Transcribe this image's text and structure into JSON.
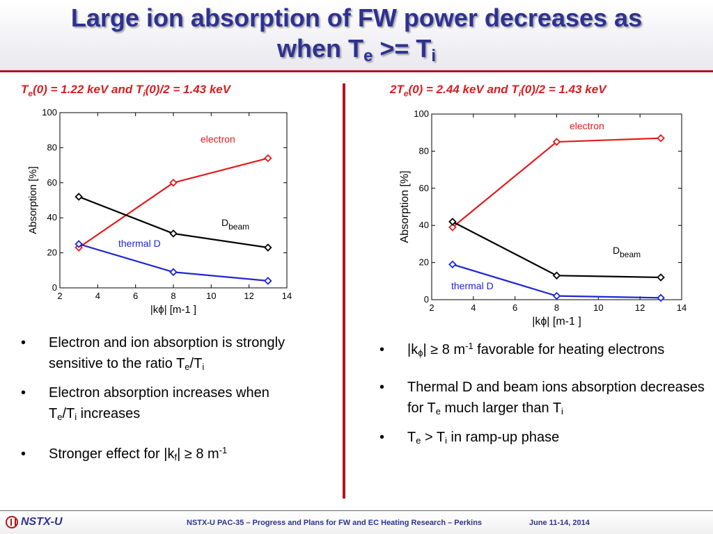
{
  "slide": {
    "title_line1": "Large ion absorption of FW power decreases as",
    "title_line2_a": "when T",
    "title_line2_sub_e": "e",
    "title_line2_b": " >= T",
    "title_line2_sub_i": "i"
  },
  "left": {
    "subtitle": {
      "t1": "T",
      "s1": "e",
      "t2": "(0) = 1.22 keV and T",
      "s2": "i",
      "t3": "(0)/2 = 1.43 keV"
    },
    "bullets": [
      {
        "dot": "•",
        "a": " Electron and ion absorption is strongly sensitive to the ratio T",
        "sub1": "e",
        "b": "/T",
        "sub2": "i"
      },
      {
        "dot": "•",
        "a": "Electron absorption increases when T",
        "sub1": "e",
        "b": "/T",
        "sub2": "i",
        "c": " increases"
      },
      {
        "dot": "•",
        "a": "Stronger effect for |k",
        "sub1": "f",
        "b": "| ≥ 8 m",
        "sup1": "-1"
      }
    ]
  },
  "right": {
    "subtitle": {
      "t1": "2T",
      "s1": "e",
      "t2": "(0) = 2.44 keV and T",
      "s2": "i",
      "t3": "(0)/2 = 1.43 keV"
    },
    "bullets": [
      {
        "dot": "•",
        "a": "|k",
        "sub1": "ϕ",
        "b": "| ≥ 8 m",
        "sup1": "-1",
        "c": " favorable for heating electrons"
      },
      {
        "dot": "•",
        "a": "Thermal D and beam ions absorption decreases for T",
        "sub1": "e",
        "b": " much larger than T",
        "sub2": "i"
      },
      {
        "dot": "•",
        "a": "T",
        "sub1": "e",
        "b": " > T",
        "sub2": "i",
        "c": " in ramp-up phase"
      }
    ]
  },
  "chart_data": [
    {
      "type": "line",
      "xlabel": "|kϕ| [m-1 ]",
      "ylabel": "Absorption [%]",
      "xlim": [
        2,
        14
      ],
      "ylim": [
        0,
        100
      ],
      "xticks": [
        2,
        4,
        6,
        8,
        10,
        12,
        14
      ],
      "yticks": [
        0,
        20,
        40,
        60,
        80,
        100
      ],
      "grid": false,
      "legend": "inline labels",
      "series": [
        {
          "name": "electron",
          "color": "#e31a1c",
          "x": [
            3,
            8,
            13
          ],
          "y": [
            23,
            60,
            74
          ]
        },
        {
          "name": "D_beam",
          "color": "#000000",
          "x": [
            3,
            8,
            13
          ],
          "y": [
            52,
            31,
            23
          ]
        },
        {
          "name": "thermal D",
          "color": "#1f24d4",
          "x": [
            3,
            8,
            13
          ],
          "y": [
            25,
            9,
            4
          ]
        }
      ]
    },
    {
      "type": "line",
      "xlabel": "|kϕ| [m-1 ]",
      "ylabel": "Absorption [%]",
      "xlim": [
        2,
        14
      ],
      "ylim": [
        0,
        100
      ],
      "xticks": [
        2,
        4,
        6,
        8,
        10,
        12,
        14
      ],
      "yticks": [
        0,
        20,
        40,
        60,
        80,
        100
      ],
      "grid": false,
      "legend": "inline labels",
      "series": [
        {
          "name": "electron",
          "color": "#e31a1c",
          "x": [
            3,
            8,
            13
          ],
          "y": [
            39,
            85,
            87
          ]
        },
        {
          "name": "D_beam",
          "color": "#000000",
          "x": [
            3,
            8,
            13
          ],
          "y": [
            42,
            13,
            12
          ]
        },
        {
          "name": "thermal D",
          "color": "#1f24d4",
          "x": [
            3,
            8,
            13
          ],
          "y": [
            19,
            2,
            1
          ]
        }
      ]
    }
  ],
  "footer": {
    "logo": "NSTX-U",
    "text": "NSTX-U PAC-35 – Progress and Plans for FW and EC Heating Research – Perkins",
    "date": "June 11-14, 2014"
  }
}
